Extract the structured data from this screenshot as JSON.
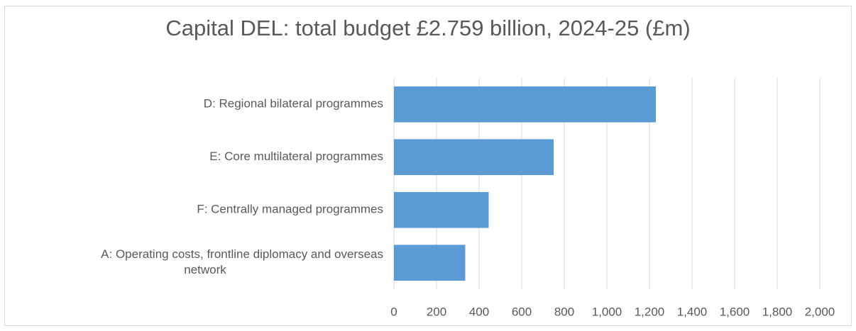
{
  "chart_data": {
    "type": "bar",
    "orientation": "horizontal",
    "title": "Capital DEL: total budget £2.759 billion, 2024-25 (£m)",
    "xlabel": "",
    "ylabel": "",
    "categories": [
      "D: Regional bilateral programmes",
      "E: Core multilateral programmes",
      "F: Centrally managed programmes",
      "A: Operating costs, frontline diplomacy and overseas network"
    ],
    "category_lines": [
      [
        "D: Regional bilateral programmes"
      ],
      [
        "E: Core multilateral programmes"
      ],
      [
        "F: Centrally managed programmes"
      ],
      [
        "A: Operating costs, frontline diplomacy and overseas",
        "network"
      ]
    ],
    "values": [
      1230,
      750,
      445,
      335
    ],
    "xlim": [
      0,
      2000
    ],
    "xticks": [
      0,
      200,
      400,
      600,
      800,
      1000,
      1200,
      1400,
      1600,
      1800,
      2000
    ],
    "xtick_labels": [
      "0",
      "200",
      "400",
      "600",
      "800",
      "1,000",
      "1,200",
      "1,400",
      "1,600",
      "1,800",
      "2,000"
    ],
    "grid": "vertical",
    "legend": "none",
    "bar_color": "#5b9bd5",
    "grid_color": "#d9d9d9",
    "text_color": "#595959"
  }
}
